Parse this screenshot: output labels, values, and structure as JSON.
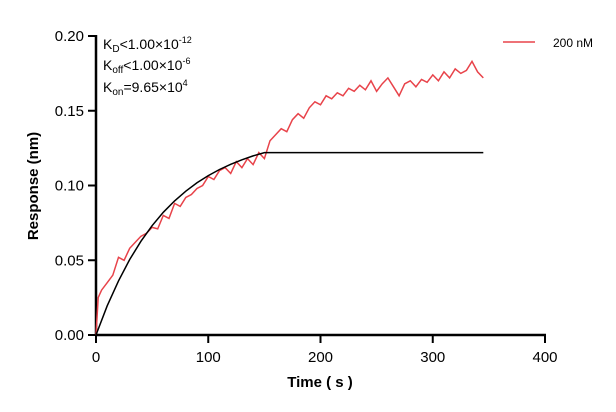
{
  "chart_data": {
    "type": "line",
    "xlabel": "Time ( s )",
    "ylabel": "Response (nm)",
    "xlim": [
      0,
      400
    ],
    "ylim": [
      0,
      0.2
    ],
    "xticks": [
      "0",
      "100",
      "200",
      "300",
      "400"
    ],
    "yticks": [
      "0.00",
      "0.05",
      "0.10",
      "0.15",
      "0.20"
    ],
    "grid": false,
    "legend_position": "top-right",
    "annotations": {
      "kd": {
        "base": "K",
        "sub": "D",
        "rel": "<1.00×10",
        "exp": "-12"
      },
      "koff": {
        "base": "K",
        "sub": "off",
        "rel": "<1.00×10",
        "exp": "-6"
      },
      "kon": {
        "base": "K",
        "sub": "on",
        "rel": "=9.65×10",
        "exp": "4"
      }
    },
    "series": [
      {
        "name": "200 nM",
        "color": "#e8434a",
        "x": [
          0,
          2,
          5,
          10,
          15,
          20,
          25,
          30,
          35,
          40,
          45,
          50,
          55,
          60,
          65,
          70,
          75,
          80,
          85,
          90,
          95,
          100,
          105,
          110,
          115,
          120,
          125,
          130,
          135,
          140,
          145,
          150,
          155,
          160,
          165,
          170,
          175,
          180,
          185,
          190,
          195,
          200,
          205,
          210,
          215,
          220,
          225,
          230,
          235,
          240,
          245,
          250,
          255,
          260,
          265,
          270,
          275,
          280,
          285,
          290,
          295,
          300,
          305,
          310,
          315,
          320,
          325,
          330,
          335,
          340,
          345
        ],
        "y": [
          0,
          0.025,
          0.03,
          0.035,
          0.04,
          0.052,
          0.05,
          0.058,
          0.062,
          0.066,
          0.068,
          0.072,
          0.071,
          0.08,
          0.078,
          0.088,
          0.086,
          0.092,
          0.094,
          0.098,
          0.1,
          0.106,
          0.104,
          0.11,
          0.112,
          0.108,
          0.116,
          0.112,
          0.118,
          0.114,
          0.122,
          0.118,
          0.13,
          0.134,
          0.138,
          0.136,
          0.144,
          0.148,
          0.145,
          0.152,
          0.156,
          0.154,
          0.16,
          0.158,
          0.162,
          0.16,
          0.165,
          0.163,
          0.167,
          0.164,
          0.17,
          0.163,
          0.168,
          0.172,
          0.166,
          0.16,
          0.168,
          0.17,
          0.166,
          0.171,
          0.169,
          0.174,
          0.17,
          0.176,
          0.172,
          0.178,
          0.175,
          0.177,
          0.183,
          0.176,
          0.172
        ]
      },
      {
        "color": "#000000",
        "x": [
          0,
          10,
          20,
          30,
          40,
          50,
          60,
          70,
          80,
          90,
          100,
          110,
          120,
          130,
          140,
          150,
          345
        ],
        "y": [
          0,
          0.0195,
          0.0362,
          0.0505,
          0.0627,
          0.0731,
          0.0821,
          0.0897,
          0.0962,
          0.1018,
          0.1066,
          0.1107,
          0.1142,
          0.1172,
          0.1198,
          0.122,
          0.122
        ]
      }
    ]
  }
}
